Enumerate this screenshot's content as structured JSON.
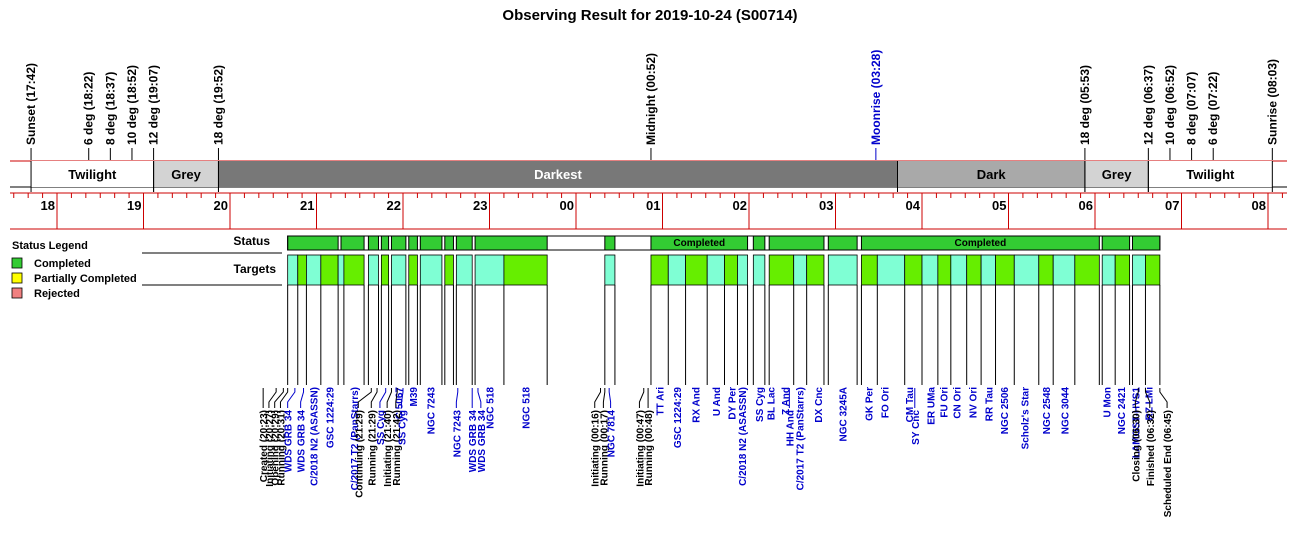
{
  "chart_data": {
    "type": "timeline",
    "title": "Observing Result for 2019-10-24 (S00714)",
    "colors": {
      "completed": "#33cc33",
      "partially_completed": "#ffff00",
      "rejected": "#f08080",
      "target_a": "#7fffd4",
      "target_b": "#66ee00",
      "darkest": "#787878",
      "dark": "#a9a9a9",
      "grey": "#d3d3d3",
      "axis": "#cc0000",
      "blue_text": "#0000cc"
    },
    "x_axis": {
      "hour_labels": [
        "18",
        "19",
        "20",
        "21",
        "22",
        "23",
        "00",
        "01",
        "02",
        "03",
        "04",
        "05",
        "06",
        "07",
        "08"
      ],
      "start": "17:30",
      "end": "08:20"
    },
    "events": [
      {
        "label": "Sunset (17:42)",
        "time": "17:42",
        "color": "black"
      },
      {
        "label": "6 deg (18:22)",
        "time": "18:22",
        "color": "black"
      },
      {
        "label": "8 deg (18:37)",
        "time": "18:37",
        "color": "black"
      },
      {
        "label": "10 deg (18:52)",
        "time": "18:52",
        "color": "black"
      },
      {
        "label": "12 deg (19:07)",
        "time": "19:07",
        "color": "black"
      },
      {
        "label": "18 deg (19:52)",
        "time": "19:52",
        "color": "black"
      },
      {
        "label": "Midnight (00:52)",
        "time": "00:52",
        "color": "black"
      },
      {
        "label": "Moonrise (03:28)",
        "time": "03:28",
        "color": "blue"
      },
      {
        "label": "18 deg (05:53)",
        "time": "05:53",
        "color": "black"
      },
      {
        "label": "12 deg (06:37)",
        "time": "06:37",
        "color": "black"
      },
      {
        "label": "10 deg (06:52)",
        "time": "06:52",
        "color": "black"
      },
      {
        "label": "8 deg (07:07)",
        "time": "07:07",
        "color": "black"
      },
      {
        "label": "6 deg (07:22)",
        "time": "07:22",
        "color": "black"
      },
      {
        "label": "Sunrise (08:03)",
        "time": "08:03",
        "color": "black"
      }
    ],
    "twilight_bands": [
      {
        "label": "Twilight",
        "start": "17:42",
        "end": "19:07",
        "shade": "white"
      },
      {
        "label": "Grey",
        "start": "19:07",
        "end": "19:52",
        "shade": "grey"
      },
      {
        "label": "Darkest",
        "start": "19:52",
        "end": "03:43",
        "shade": "darkest"
      },
      {
        "label": "Dark",
        "start": "03:43",
        "end": "05:53",
        "shade": "dark"
      },
      {
        "label": "Grey",
        "start": "05:53",
        "end": "06:37",
        "shade": "grey"
      },
      {
        "label": "Twilight",
        "start": "06:37",
        "end": "08:03",
        "shade": "white"
      }
    ],
    "legend": {
      "title": "Status Legend",
      "items": [
        {
          "label": "Completed",
          "color": "#33cc33"
        },
        {
          "label": "Partially Completed",
          "color": "#ffff00"
        },
        {
          "label": "Rejected",
          "color": "#f08080"
        }
      ]
    },
    "row_labels": {
      "status": "Status",
      "targets": "Targets"
    },
    "status_segments": [
      {
        "start": "20:40",
        "end": "21:15",
        "label": ""
      },
      {
        "start": "21:17",
        "end": "21:33",
        "label": ""
      },
      {
        "start": "21:36",
        "end": "21:43",
        "label": ""
      },
      {
        "start": "21:45",
        "end": "21:50",
        "label": ""
      },
      {
        "start": "21:52",
        "end": "22:02",
        "label": ""
      },
      {
        "start": "22:04",
        "end": "22:10",
        "label": ""
      },
      {
        "start": "22:12",
        "end": "22:27",
        "label": ""
      },
      {
        "start": "22:29",
        "end": "22:35",
        "label": ""
      },
      {
        "start": "22:37",
        "end": "22:48",
        "label": ""
      },
      {
        "start": "22:50",
        "end": "23:40",
        "label": ""
      },
      {
        "start": "00:20",
        "end": "00:27",
        "label": ""
      },
      {
        "start": "00:52",
        "end": "01:59",
        "label": "Completed"
      },
      {
        "start": "02:03",
        "end": "02:11",
        "label": ""
      },
      {
        "start": "02:14",
        "end": "02:52",
        "label": ""
      },
      {
        "start": "02:55",
        "end": "03:15",
        "label": ""
      },
      {
        "start": "03:18",
        "end": "06:03",
        "label": "Completed"
      },
      {
        "start": "06:05",
        "end": "06:24",
        "label": ""
      },
      {
        "start": "06:26",
        "end": "06:45",
        "label": ""
      }
    ],
    "target_segments": [
      {
        "start": "20:40",
        "end": "20:47",
        "color": "a"
      },
      {
        "start": "20:47",
        "end": "20:53",
        "color": "b"
      },
      {
        "start": "20:53",
        "end": "21:03",
        "color": "a"
      },
      {
        "start": "21:03",
        "end": "21:15",
        "color": "b"
      },
      {
        "start": "21:15",
        "end": "21:19",
        "color": "a"
      },
      {
        "start": "21:19",
        "end": "21:33",
        "color": "b"
      },
      {
        "start": "21:36",
        "end": "21:43",
        "color": "a"
      },
      {
        "start": "21:45",
        "end": "21:50",
        "color": "b"
      },
      {
        "start": "21:52",
        "end": "22:02",
        "color": "a"
      },
      {
        "start": "22:04",
        "end": "22:10",
        "color": "b"
      },
      {
        "start": "22:12",
        "end": "22:27",
        "color": "a"
      },
      {
        "start": "22:29",
        "end": "22:35",
        "color": "b"
      },
      {
        "start": "22:37",
        "end": "22:48",
        "color": "a"
      },
      {
        "start": "22:50",
        "end": "23:10",
        "color": "a"
      },
      {
        "start": "23:10",
        "end": "23:40",
        "color": "b"
      },
      {
        "start": "00:20",
        "end": "00:27",
        "color": "a"
      },
      {
        "start": "00:52",
        "end": "01:04",
        "color": "b"
      },
      {
        "start": "01:04",
        "end": "01:16",
        "color": "a"
      },
      {
        "start": "01:16",
        "end": "01:31",
        "color": "b"
      },
      {
        "start": "01:31",
        "end": "01:43",
        "color": "a"
      },
      {
        "start": "01:43",
        "end": "01:52",
        "color": "b"
      },
      {
        "start": "01:52",
        "end": "01:59",
        "color": "a"
      },
      {
        "start": "02:03",
        "end": "02:11",
        "color": "a"
      },
      {
        "start": "02:14",
        "end": "02:31",
        "color": "b"
      },
      {
        "start": "02:31",
        "end": "02:40",
        "color": "a"
      },
      {
        "start": "02:40",
        "end": "02:52",
        "color": "b"
      },
      {
        "start": "02:55",
        "end": "03:15",
        "color": "a"
      },
      {
        "start": "03:18",
        "end": "03:29",
        "color": "b"
      },
      {
        "start": "03:29",
        "end": "03:48",
        "color": "a"
      },
      {
        "start": "03:48",
        "end": "04:00",
        "color": "b"
      },
      {
        "start": "04:00",
        "end": "04:11",
        "color": "a"
      },
      {
        "start": "04:11",
        "end": "04:20",
        "color": "b"
      },
      {
        "start": "04:20",
        "end": "04:31",
        "color": "a"
      },
      {
        "start": "04:31",
        "end": "04:41",
        "color": "b"
      },
      {
        "start": "04:41",
        "end": "04:51",
        "color": "a"
      },
      {
        "start": "04:51",
        "end": "05:04",
        "color": "b"
      },
      {
        "start": "05:04",
        "end": "05:21",
        "color": "a"
      },
      {
        "start": "05:21",
        "end": "05:31",
        "color": "b"
      },
      {
        "start": "05:31",
        "end": "05:46",
        "color": "a"
      },
      {
        "start": "05:46",
        "end": "06:03",
        "color": "b"
      },
      {
        "start": "06:05",
        "end": "06:14",
        "color": "a"
      },
      {
        "start": "06:14",
        "end": "06:24",
        "color": "b"
      },
      {
        "start": "06:26",
        "end": "06:35",
        "color": "a"
      },
      {
        "start": "06:35",
        "end": "06:45",
        "color": "b"
      }
    ],
    "target_names": [
      {
        "label": "C/2018 N2 (ASASSN)",
        "time": "20:58",
        "color": "blue"
      },
      {
        "label": "GSC 1224:29",
        "time": "21:09",
        "color": "blue"
      },
      {
        "label": "C/2017 T2 (PanStarrs)",
        "time": "21:26",
        "color": "blue"
      },
      {
        "label": "IC 5067",
        "time": "21:57",
        "color": "blue"
      },
      {
        "label": "M39",
        "time": "22:07",
        "color": "blue"
      },
      {
        "label": "NGC 7243",
        "time": "22:19",
        "color": "blue"
      },
      {
        "label": "NGC 518",
        "time": "23:00",
        "color": "blue"
      },
      {
        "label": "NGC 518",
        "time": "23:25",
        "color": "blue"
      },
      {
        "label": "TT Ari",
        "time": "00:58",
        "color": "blue"
      },
      {
        "label": "GSC 1224:29",
        "time": "01:10",
        "color": "blue"
      },
      {
        "label": "RX And",
        "time": "01:23",
        "color": "blue"
      },
      {
        "label": "U And",
        "time": "01:37",
        "color": "blue"
      },
      {
        "label": "DY Per",
        "time": "01:48",
        "color": "blue"
      },
      {
        "label": "C/2018 N2 (ASASSN)",
        "time": "01:55",
        "color": "blue"
      },
      {
        "label": "SS Cyg",
        "time": "02:07",
        "color": "blue"
      },
      {
        "label": "BL Lac",
        "time": "02:15",
        "color": "blue"
      },
      {
        "label": "Z And",
        "time": "02:25",
        "color": "blue"
      },
      {
        "label": "C/2017 T2 (PanStarrs)",
        "time": "02:35",
        "color": "blue"
      },
      {
        "label": "DX Cnc",
        "time": "02:48",
        "color": "blue"
      },
      {
        "label": "NGC 3245A",
        "time": "03:05",
        "color": "blue"
      },
      {
        "label": "GK Per",
        "time": "03:23",
        "color": "blue"
      },
      {
        "label": "FO Ori",
        "time": "03:34",
        "color": "blue"
      },
      {
        "label": "CM Tau",
        "time": "03:51",
        "color": "blue"
      },
      {
        "label": "ER UMa",
        "time": "04:06",
        "color": "blue"
      },
      {
        "label": "FU Ori",
        "time": "04:15",
        "color": "blue"
      },
      {
        "label": "CN Ori",
        "time": "04:24",
        "color": "blue"
      },
      {
        "label": "NV Ori",
        "time": "04:35",
        "color": "blue"
      },
      {
        "label": "RR Tau",
        "time": "04:46",
        "color": "blue"
      },
      {
        "label": "NGC 2506",
        "time": "04:57",
        "color": "blue"
      },
      {
        "label": "Scholz's Star",
        "time": "05:11",
        "color": "blue"
      },
      {
        "label": "NGC 2548",
        "time": "05:26",
        "color": "blue"
      },
      {
        "label": "NGC 3044",
        "time": "05:39",
        "color": "blue"
      },
      {
        "label": "U Mon",
        "time": "06:08",
        "color": "blue"
      },
      {
        "label": "NGC 2421",
        "time": "06:18",
        "color": "blue"
      },
      {
        "label": "LAMOST-HVS1",
        "time": "06:28",
        "color": "blue"
      },
      {
        "label": "RZ LMi",
        "time": "06:37",
        "color": "blue"
      }
    ],
    "log_events": [
      {
        "label": "Created (20:23)",
        "time": "20:23",
        "anchor": "20:23",
        "color": "black"
      },
      {
        "label": "Initiating (20:27)",
        "time": "20:27",
        "anchor": "20:32",
        "color": "black"
      },
      {
        "label": "Opening (20:29)",
        "time": "20:31",
        "anchor": "20:37",
        "color": "black"
      },
      {
        "label": "Running (20:31)",
        "time": "20:35",
        "anchor": "20:40",
        "color": "black"
      },
      {
        "label": "WDS GRB 34",
        "time": "20:40",
        "anchor": "20:45",
        "color": "blue"
      },
      {
        "label": "WDS GRB 34",
        "time": "20:49",
        "anchor": "20:51",
        "color": "blue"
      },
      {
        "label": "Continuing (21:29)",
        "time": "21:29",
        "anchor": "21:38",
        "color": "black"
      },
      {
        "label": "Running (21:29)",
        "time": "21:38",
        "anchor": "21:42",
        "color": "black"
      },
      {
        "label": "SS Cyg",
        "time": "21:44",
        "anchor": "21:48",
        "color": "blue"
      },
      {
        "label": "Initiating (21:40)",
        "time": "21:49",
        "anchor": "21:52",
        "color": "black"
      },
      {
        "label": "Running (21:42)",
        "time": "21:55",
        "anchor": "21:56",
        "color": "black"
      },
      {
        "label": "SS Cyg",
        "time": "21:59",
        "anchor": "22:00",
        "color": "blue"
      },
      {
        "label": "NGC 7243",
        "time": "22:37",
        "anchor": "22:38",
        "color": "blue"
      },
      {
        "label": "WDS GRB 34",
        "time": "22:48",
        "anchor": "22:48",
        "color": "blue"
      },
      {
        "label": "WDS GRB 34",
        "time": "22:54",
        "anchor": "22:52",
        "color": "blue"
      },
      {
        "label": "Initiating (00:16)",
        "time": "00:13",
        "anchor": "00:17",
        "color": "black"
      },
      {
        "label": "Running (00:17)",
        "time": "00:19",
        "anchor": "00:20",
        "color": "black"
      },
      {
        "label": "NGC 7814",
        "time": "00:24",
        "anchor": "00:23",
        "color": "blue"
      },
      {
        "label": "Initiating (00:47)",
        "time": "00:44",
        "anchor": "00:47",
        "color": "black"
      },
      {
        "label": "Running (00:48)",
        "time": "00:50",
        "anchor": "00:50",
        "color": "black"
      },
      {
        "label": "HH And",
        "time": "02:28",
        "anchor": "02:28",
        "color": "blue"
      },
      {
        "label": "SY Cnc",
        "time": "03:55",
        "anchor": "03:55",
        "color": "blue"
      },
      {
        "label": "Closing (06:30)",
        "time": "06:28",
        "anchor": "06:30",
        "color": "black"
      },
      {
        "label": "Finished (06:32)",
        "time": "06:38",
        "anchor": "06:35",
        "color": "black"
      },
      {
        "label": "Scheduled End (06:45)",
        "time": "06:50",
        "anchor": "06:45",
        "color": "black"
      }
    ]
  }
}
